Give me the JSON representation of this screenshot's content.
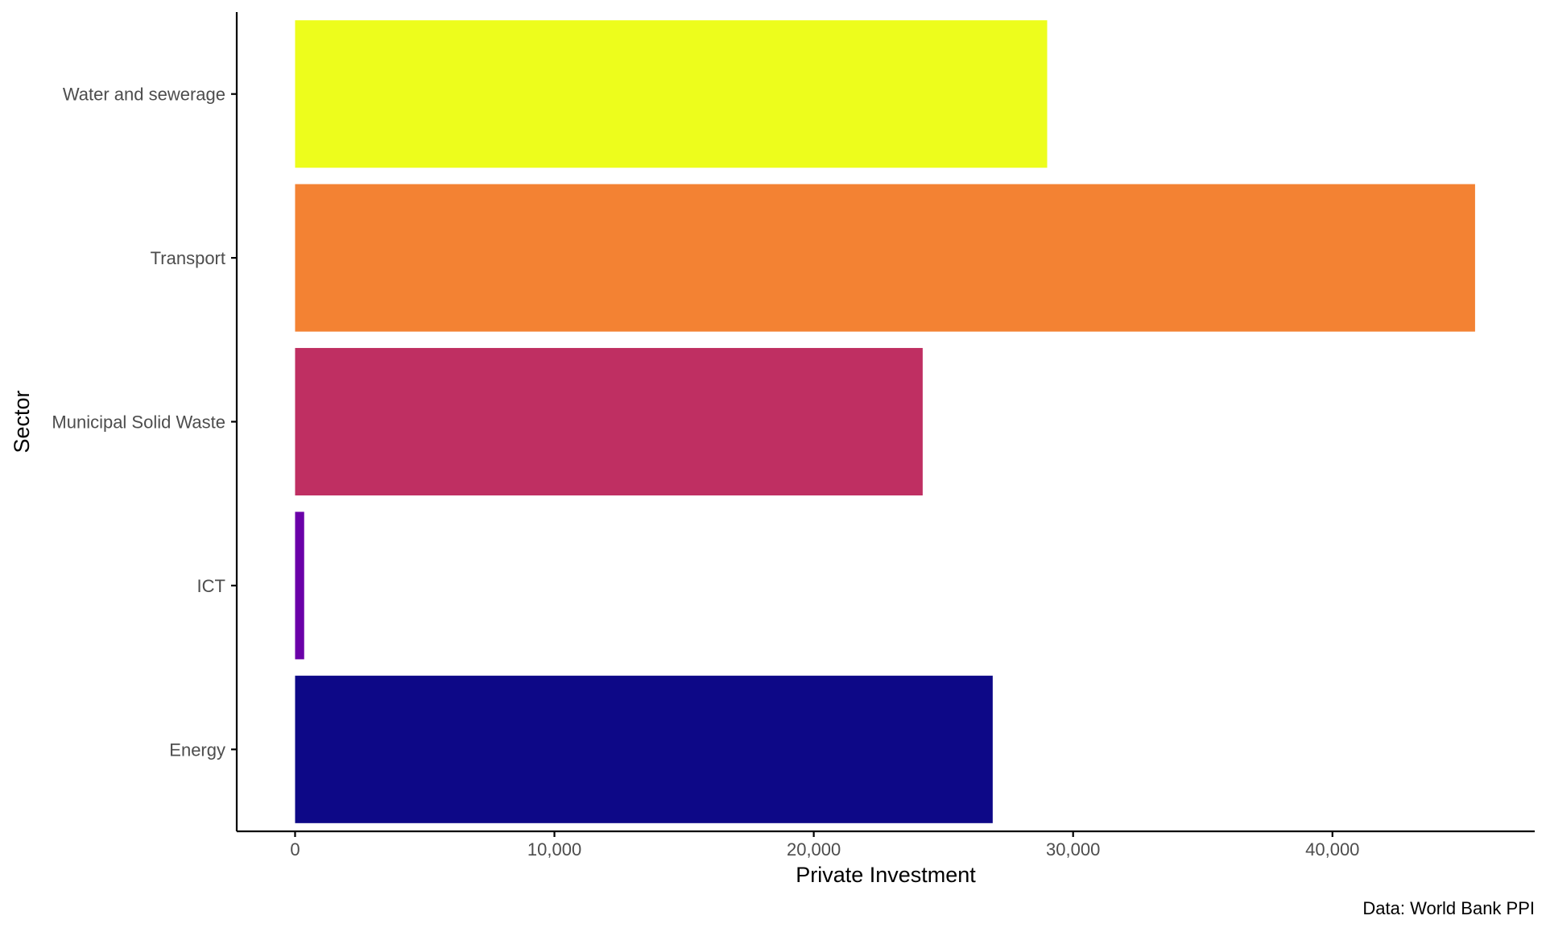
{
  "chart_data": {
    "type": "bar",
    "orientation": "horizontal",
    "title": "",
    "xlabel": "Private Investment",
    "ylabel": "Sector",
    "caption": "Data: World Bank PPI",
    "categories": [
      "Energy",
      "ICT",
      "Municipal Solid Waste",
      "Transport",
      "Water and sewerage"
    ],
    "values": [
      26900,
      350,
      24200,
      45500,
      29000
    ],
    "colors": [
      "#0d0887",
      "#6a00a8",
      "#bf2f62",
      "#f38233",
      "#edfd1c"
    ],
    "xlim": [
      -2250,
      47800
    ],
    "xticks": [
      0,
      10000,
      20000,
      30000,
      40000
    ],
    "xtick_labels": [
      "0",
      "10,000",
      "20,000",
      "30,000",
      "40,000"
    ],
    "grid": false,
    "legend": "none"
  }
}
